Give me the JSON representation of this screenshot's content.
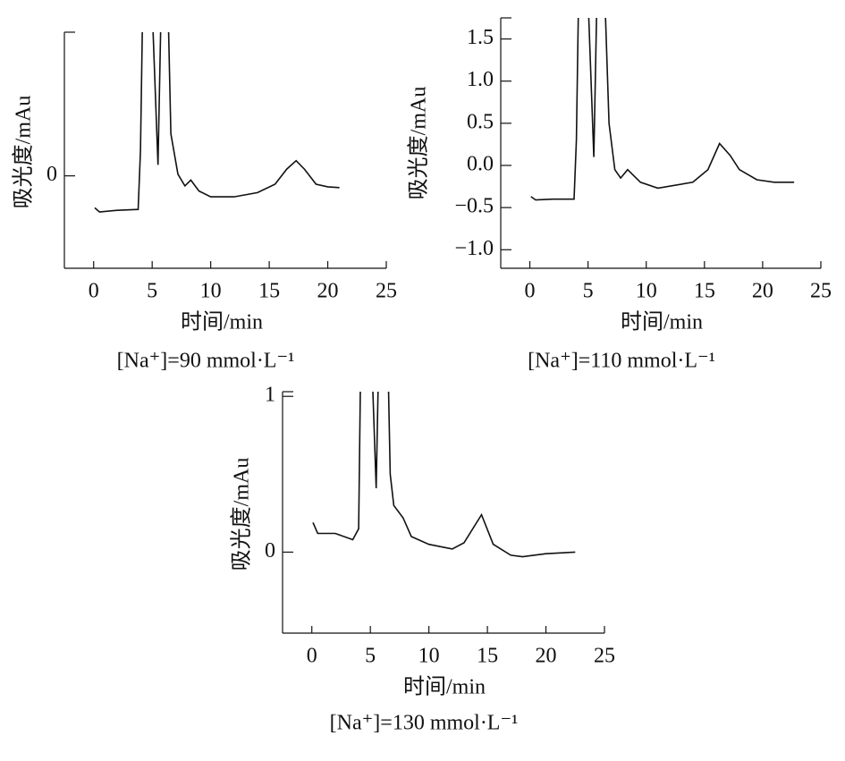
{
  "chart_data": [
    {
      "type": "line",
      "ylabel": "吸光度/mAu",
      "xlabel": "时间/min",
      "caption": "[Na⁺]=90 mmol·L⁻¹",
      "xlim": [
        -2.5,
        25
      ],
      "ylim": [
        -1.1,
        1.71
      ],
      "xticks": [
        0,
        5,
        10,
        15,
        20,
        25
      ],
      "yticks": [
        0
      ],
      "color": "#111111",
      "x": [
        0.1,
        0.5,
        2,
        3.8,
        4.0,
        4.3,
        5.0,
        5.5,
        5.9,
        6.2,
        6.6,
        7.2,
        7.8,
        8.3,
        9,
        10,
        12,
        14,
        15.5,
        16.5,
        17.3,
        18,
        19,
        20,
        21
      ],
      "values": [
        -0.38,
        -0.43,
        -0.41,
        -0.4,
        0.3,
        3,
        2,
        0.13,
        3,
        3,
        0.5,
        0.02,
        -0.12,
        -0.05,
        -0.18,
        -0.25,
        -0.25,
        -0.2,
        -0.1,
        0.08,
        0.18,
        0.08,
        -0.1,
        -0.13,
        -0.14
      ]
    },
    {
      "type": "line",
      "ylabel": "吸光度/mAu",
      "xlabel": "时间/min",
      "caption": "[Na⁺]=110 mmol·L⁻¹",
      "xlim": [
        -2.5,
        25
      ],
      "ylim": [
        -1.22,
        1.75
      ],
      "xticks": [
        0,
        5,
        10,
        15,
        20,
        25
      ],
      "yticks": [
        {
          "value": -1.0,
          "label": "−1.0"
        },
        {
          "value": -0.5,
          "label": "−0.5"
        },
        {
          "value": 0,
          "label": "0.0"
        },
        0.5,
        {
          "value": 1.0,
          "label": "1.0"
        },
        1.5
      ],
      "color": "#111111",
      "x": [
        0.1,
        0.5,
        2,
        3.8,
        4.0,
        4.3,
        5.0,
        5.5,
        5.9,
        6.2,
        6.8,
        7.3,
        7.8,
        8.4,
        9.5,
        11,
        14,
        15.3,
        16.3,
        17.2,
        18,
        19.5,
        21,
        22.7
      ],
      "values": [
        -0.37,
        -0.41,
        -0.4,
        -0.4,
        0.3,
        3,
        2,
        0.1,
        3,
        3,
        0.5,
        -0.05,
        -0.15,
        -0.05,
        -0.2,
        -0.27,
        -0.2,
        -0.05,
        0.26,
        0.12,
        -0.05,
        -0.17,
        -0.2,
        -0.2
      ]
    },
    {
      "type": "line",
      "ylabel": "吸光度/mAu",
      "xlabel": "时间/min",
      "caption": "[Na⁺]=130 mmol·L⁻¹",
      "xlim": [
        -2.5,
        25
      ],
      "ylim": [
        -0.52,
        1.03
      ],
      "xticks": [
        0,
        5,
        10,
        15,
        20,
        25
      ],
      "yticks": [
        0,
        1
      ],
      "color": "#111111",
      "x": [
        0.1,
        0.5,
        2,
        3.5,
        4.0,
        4.3,
        5.0,
        5.5,
        5.9,
        6.3,
        6.7,
        7.0,
        7.8,
        8.5,
        10,
        12,
        13,
        14.5,
        15.5,
        17,
        18,
        20,
        22.5
      ],
      "values": [
        0.19,
        0.12,
        0.12,
        0.08,
        0.15,
        2,
        1.5,
        0.41,
        2,
        2,
        0.5,
        0.3,
        0.22,
        0.1,
        0.05,
        0.02,
        0.06,
        0.24,
        0.05,
        -0.02,
        -0.03,
        -0.01,
        0
      ]
    }
  ]
}
